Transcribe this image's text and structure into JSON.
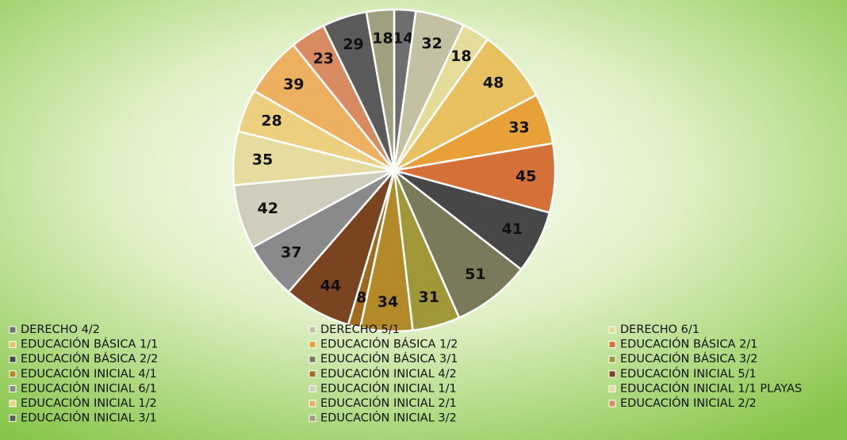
{
  "chart_data": {
    "type": "pie",
    "categories": [
      "DERECHO 4/2",
      "DERECHO 5/1",
      "DERECHO 6/1",
      "EDUCACIÓN BÁSICA 1/1",
      "EDUCACIÓN BÁSICA 1/2",
      "EDUCACIÓN BÁSICA 2/1",
      "EDUCACIÓN BÁSICA 2/2",
      "EDUCACIÓN BÁSICA 3/1",
      "EDUCACIÓN BÁSICA 3/2",
      "EDUCACIÓN INICIAL 4/1",
      "EDUCACIÓN INICIAL 4/2",
      "EDUCACIÓN INICIAL 5/1",
      "EDUCACIÓN INICIAL 6/1",
      "EDUCACIÓN INICIAL 1/1",
      "EDUCACIÓN INICIAL 1/1 PLAYAS",
      "EDUCACIÓN INICIAL 1/2",
      "EDUCACIÓN INICIAL 2/1",
      "EDUCACIÓN INICIAL 2/2",
      "EDUCACIÓN INICIAL 3/1",
      "EDUCACIÓN INICIAL 3/2"
    ],
    "values": [
      14,
      32,
      18,
      48,
      33,
      45,
      41,
      51,
      31,
      34,
      8,
      44,
      37,
      42,
      35,
      28,
      39,
      23,
      29,
      18
    ],
    "colors": [
      "#6e6e6e",
      "#c4c0a4",
      "#e6dc9a",
      "#e8c060",
      "#e8a038",
      "#d47038",
      "#474747",
      "#7a7a5a",
      "#a09838",
      "#b48a28",
      "#a06a20",
      "#7a4420",
      "#8a8a8a",
      "#cfcdbc",
      "#e6dca0",
      "#ecd080",
      "#ecb060",
      "#d88a60",
      "#5a5a5a",
      "#a0a080"
    ],
    "legend": "bottom"
  }
}
